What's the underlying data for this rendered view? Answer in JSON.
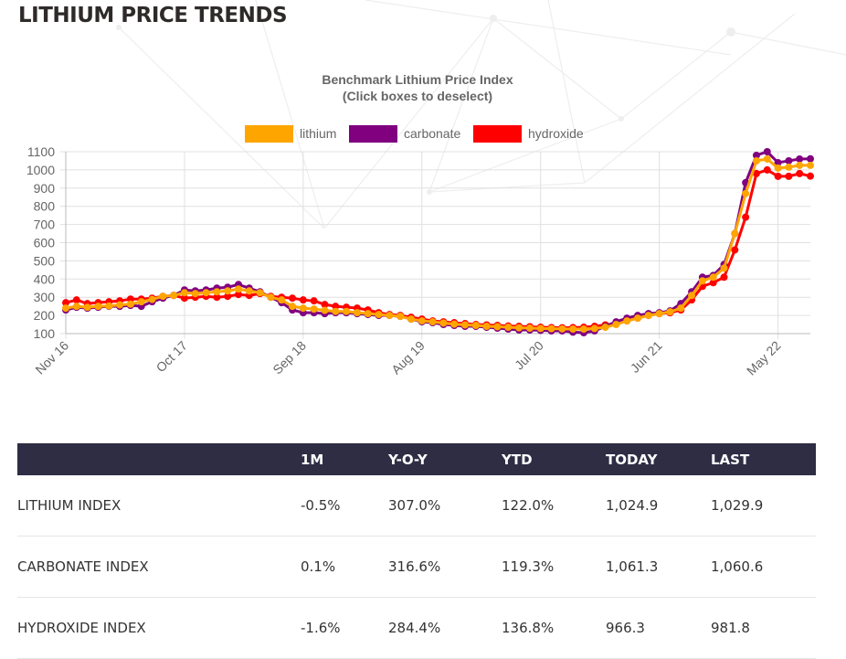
{
  "page_title": "LITHIUM PRICE TRENDS",
  "chart_data": {
    "type": "line",
    "title": "Benchmark Lithium Price Index",
    "subtitle": "(Click boxes to deselect)",
    "x_start": "Nov 16",
    "x_interval": "monthly",
    "x_tick_labels": [
      "Nov 16",
      "Oct 17",
      "Sep 18",
      "Aug 19",
      "Jul 20",
      "Jun 21",
      "May 22"
    ],
    "x_tick_indices": [
      0,
      11,
      22,
      33,
      44,
      55,
      66
    ],
    "y_ticks": [
      100,
      200,
      300,
      400,
      500,
      600,
      700,
      800,
      900,
      1000,
      1100
    ],
    "ylim": [
      100,
      1100
    ],
    "grid": true,
    "legend_position": "top",
    "series": [
      {
        "name": "lithium",
        "color": "#FFA500",
        "values": [
          240,
          250,
          245,
          250,
          252,
          258,
          262,
          275,
          288,
          305,
          310,
          325,
          320,
          325,
          330,
          335,
          345,
          335,
          325,
          300,
          285,
          250,
          240,
          235,
          228,
          222,
          222,
          215,
          210,
          205,
          200,
          195,
          180,
          170,
          165,
          158,
          152,
          148,
          145,
          140,
          138,
          135,
          132,
          130,
          128,
          127,
          126,
          125,
          125,
          128,
          135,
          150,
          170,
          185,
          200,
          210,
          220,
          240,
          310,
          390,
          410,
          460,
          650,
          870,
          1050,
          1060,
          1010,
          1015,
          1025,
          1025
        ]
      },
      {
        "name": "carbonate",
        "color": "#800080",
        "values": [
          230,
          245,
          240,
          245,
          250,
          250,
          255,
          250,
          275,
          295,
          310,
          340,
          335,
          340,
          350,
          355,
          370,
          350,
          330,
          300,
          270,
          230,
          215,
          215,
          210,
          215,
          215,
          210,
          205,
          200,
          200,
          195,
          180,
          165,
          160,
          150,
          145,
          140,
          140,
          135,
          130,
          125,
          120,
          120,
          118,
          115,
          115,
          108,
          105,
          115,
          140,
          165,
          185,
          200,
          210,
          215,
          225,
          265,
          330,
          410,
          420,
          480,
          650,
          930,
          1080,
          1100,
          1040,
          1050,
          1060,
          1061
        ]
      },
      {
        "name": "hydroxide",
        "color": "#FF0000",
        "values": [
          270,
          285,
          265,
          270,
          275,
          280,
          290,
          290,
          295,
          305,
          310,
          295,
          300,
          305,
          300,
          305,
          315,
          310,
          320,
          305,
          300,
          295,
          285,
          280,
          260,
          250,
          245,
          240,
          230,
          215,
          205,
          200,
          190,
          180,
          170,
          165,
          160,
          155,
          150,
          148,
          145,
          142,
          140,
          138,
          135,
          133,
          132,
          133,
          135,
          140,
          148,
          155,
          170,
          185,
          200,
          210,
          215,
          230,
          285,
          360,
          380,
          410,
          560,
          740,
          980,
          1000,
          965,
          965,
          980,
          966
        ]
      }
    ]
  },
  "table": {
    "headers": [
      "",
      "1M",
      "Y-O-Y",
      "YTD",
      "TODAY",
      "LAST"
    ],
    "rows": [
      [
        "LITHIUM INDEX",
        "-0.5%",
        "307.0%",
        "122.0%",
        "1,024.9",
        "1,029.9"
      ],
      [
        "CARBONATE INDEX",
        "0.1%",
        "316.6%",
        "119.3%",
        "1,061.3",
        "1,060.6"
      ],
      [
        "HYDROXIDE INDEX",
        "-1.6%",
        "284.4%",
        "136.8%",
        "966.3",
        "981.8"
      ]
    ]
  }
}
